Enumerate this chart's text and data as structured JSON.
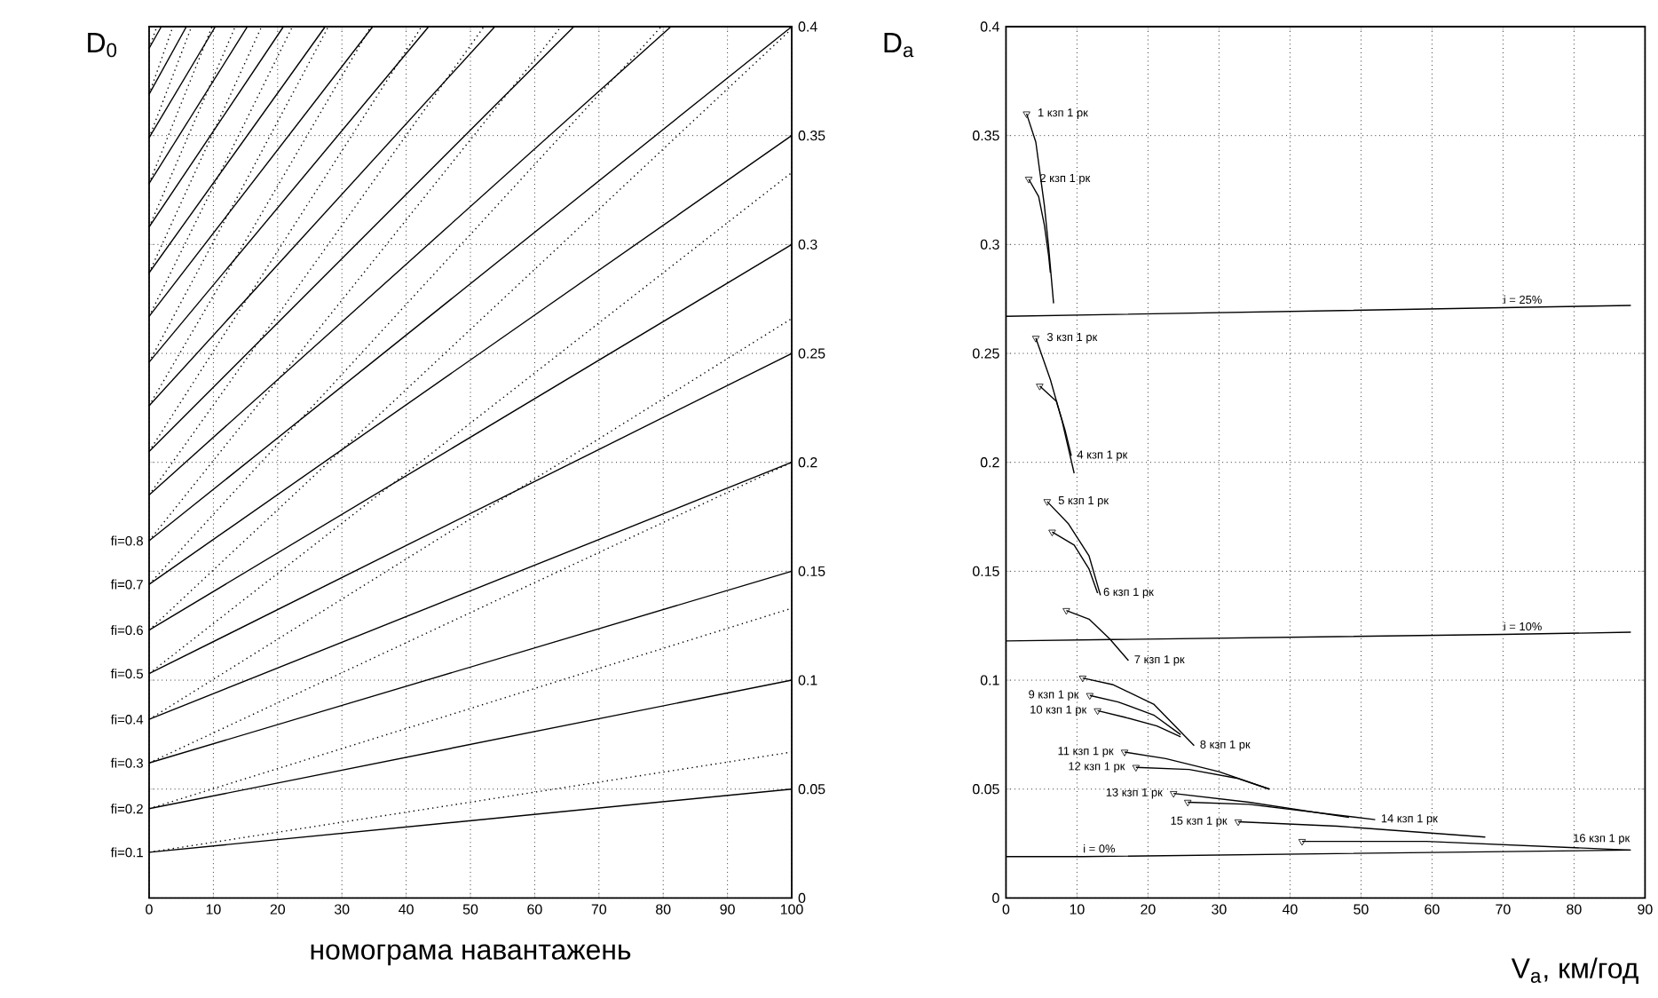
{
  "chart_data": [
    {
      "type": "line",
      "xlabel": "номограма навантажень",
      "ylabel": "D$_{0}$",
      "xlim": [
        0,
        100
      ],
      "xticks": [
        0,
        10,
        20,
        30,
        40,
        50,
        60,
        70,
        80,
        90,
        100
      ],
      "ylim": [
        0,
        0.4
      ],
      "yticks": [
        0,
        0.05,
        0.1,
        0.15,
        0.2,
        0.25,
        0.3,
        0.35,
        0.4
      ],
      "grid": true,
      "series": [
        {
          "name": "fi=0.1",
          "color": "#000000",
          "line_style": "solid",
          "x": [
            0,
            100
          ],
          "values": [
            0.021,
            0.05
          ]
        },
        {
          "name": "fi=0.2",
          "color": "#000000",
          "line_style": "solid",
          "x": [
            0,
            100
          ],
          "values": [
            0.041,
            0.1
          ]
        },
        {
          "name": "fi=0.3",
          "color": "#000000",
          "line_style": "solid",
          "x": [
            0,
            100
          ],
          "values": [
            0.062,
            0.15
          ]
        },
        {
          "name": "fi=0.4",
          "color": "#000000",
          "line_style": "solid",
          "x": [
            0,
            100
          ],
          "values": [
            0.082,
            0.2
          ]
        },
        {
          "name": "fi=0.5",
          "color": "#000000",
          "line_style": "solid",
          "x": [
            0,
            100
          ],
          "values": [
            0.103,
            0.25
          ]
        },
        {
          "name": "fi=0.6",
          "color": "#000000",
          "line_style": "solid",
          "x": [
            0,
            100
          ],
          "values": [
            0.123,
            0.3
          ]
        },
        {
          "name": "fi=0.7",
          "color": "#000000",
          "line_style": "solid",
          "x": [
            0,
            100
          ],
          "values": [
            0.144,
            0.35
          ]
        },
        {
          "name": "fi=0.8",
          "color": "#000000",
          "line_style": "solid",
          "x": [
            0,
            100
          ],
          "values": [
            0.164,
            0.4
          ]
        },
        {
          "color": "#000000",
          "line_style": "solid",
          "x": [
            0,
            81.2
          ],
          "values": [
            0.185,
            0.4
          ]
        },
        {
          "color": "#000000",
          "line_style": "solid",
          "x": [
            0,
            66.1
          ],
          "values": [
            0.205,
            0.4
          ]
        },
        {
          "color": "#000000",
          "line_style": "solid",
          "x": [
            0,
            53.8
          ],
          "values": [
            0.226,
            0.4
          ]
        },
        {
          "color": "#000000",
          "line_style": "solid",
          "x": [
            0,
            43.5
          ],
          "values": [
            0.246,
            0.4
          ]
        },
        {
          "color": "#000000",
          "line_style": "solid",
          "x": [
            0,
            34.8
          ],
          "values": [
            0.267,
            0.4
          ]
        },
        {
          "color": "#000000",
          "line_style": "solid",
          "x": [
            0,
            27.4
          ],
          "values": [
            0.287,
            0.4
          ]
        },
        {
          "color": "#000000",
          "line_style": "solid",
          "x": [
            0,
            20.9
          ],
          "values": [
            0.308,
            0.4
          ]
        },
        {
          "color": "#000000",
          "line_style": "solid",
          "x": [
            0,
            15.3
          ],
          "values": [
            0.328,
            0.4
          ]
        },
        {
          "color": "#000000",
          "line_style": "solid",
          "x": [
            0,
            10.3
          ],
          "values": [
            0.349,
            0.4
          ]
        },
        {
          "color": "#000000",
          "line_style": "solid",
          "x": [
            0,
            5.8
          ],
          "values": [
            0.369,
            0.4
          ]
        },
        {
          "color": "#000000",
          "line_style": "solid",
          "x": [
            0,
            1.9
          ],
          "values": [
            0.39,
            0.4
          ]
        },
        {
          "color": "#000000",
          "line_style": "dotted",
          "x": [
            0,
            100
          ],
          "values": [
            0.021,
            0.067
          ]
        },
        {
          "color": "#000000",
          "line_style": "dotted",
          "x": [
            0,
            100
          ],
          "values": [
            0.041,
            0.133
          ]
        },
        {
          "color": "#000000",
          "line_style": "dotted",
          "x": [
            0,
            100
          ],
          "values": [
            0.062,
            0.2
          ]
        },
        {
          "color": "#000000",
          "line_style": "dotted",
          "x": [
            0,
            100
          ],
          "values": [
            0.082,
            0.266
          ]
        },
        {
          "color": "#000000",
          "line_style": "dotted",
          "x": [
            0,
            100
          ],
          "values": [
            0.103,
            0.333
          ]
        },
        {
          "color": "#000000",
          "line_style": "dotted",
          "x": [
            0,
            100
          ],
          "values": [
            0.123,
            0.399
          ]
        },
        {
          "color": "#000000",
          "line_style": "dotted",
          "x": [
            0,
            79.7
          ],
          "values": [
            0.144,
            0.4
          ]
        },
        {
          "color": "#000000",
          "line_style": "dotted",
          "x": [
            0,
            64.1
          ],
          "values": [
            0.164,
            0.4
          ]
        },
        {
          "color": "#000000",
          "line_style": "dotted",
          "x": [
            0,
            52.1
          ],
          "values": [
            0.185,
            0.4
          ]
        },
        {
          "color": "#000000",
          "line_style": "dotted",
          "x": [
            0,
            42.4
          ],
          "values": [
            0.205,
            0.4
          ]
        },
        {
          "color": "#000000",
          "line_style": "dotted",
          "x": [
            0,
            34.5
          ],
          "values": [
            0.226,
            0.4
          ]
        },
        {
          "color": "#000000",
          "line_style": "dotted",
          "x": [
            0,
            27.9
          ],
          "values": [
            0.246,
            0.4
          ]
        },
        {
          "color": "#000000",
          "line_style": "dotted",
          "x": [
            0,
            22.3
          ],
          "values": [
            0.267,
            0.4
          ]
        },
        {
          "color": "#000000",
          "line_style": "dotted",
          "x": [
            0,
            17.5
          ],
          "values": [
            0.287,
            0.4
          ]
        },
        {
          "color": "#000000",
          "line_style": "dotted",
          "x": [
            0,
            13.4
          ],
          "values": [
            0.308,
            0.4
          ]
        },
        {
          "color": "#000000",
          "line_style": "dotted",
          "x": [
            0,
            9.8
          ],
          "values": [
            0.328,
            0.4
          ]
        },
        {
          "color": "#000000",
          "line_style": "dotted",
          "x": [
            0,
            6.6
          ],
          "values": [
            0.349,
            0.4
          ]
        },
        {
          "color": "#000000",
          "line_style": "dotted",
          "x": [
            0,
            3.7
          ],
          "values": [
            0.369,
            0.4
          ]
        },
        {
          "color": "#000000",
          "line_style": "dotted",
          "x": [
            0,
            1.2
          ],
          "values": [
            0.39,
            0.4
          ]
        }
      ]
    },
    {
      "type": "line",
      "xlabel": "V$_{a}$, км/год",
      "ylabel": "D$_{a}$",
      "xlim": [
        0,
        90
      ],
      "xticks": [
        0,
        10,
        20,
        30,
        40,
        50,
        60,
        70,
        80,
        90
      ],
      "ylim": [
        0,
        0.4
      ],
      "yticks": [
        0,
        0.05,
        0.1,
        0.15,
        0.2,
        0.25,
        0.3,
        0.35,
        0.4
      ],
      "grid": true,
      "series": [
        {
          "name": "i = 25%",
          "color": "#000000",
          "line_style": "solid",
          "x": [
            0,
            70,
            88
          ],
          "values": [
            0.267,
            0.271,
            0.272
          ]
        },
        {
          "name": "i = 10%",
          "color": "#000000",
          "line_style": "solid",
          "x": [
            0,
            70,
            88
          ],
          "values": [
            0.118,
            0.121,
            0.122
          ]
        },
        {
          "name": "i = 0%",
          "color": "#000000",
          "line_style": "solid",
          "x": [
            0,
            10.8,
            88
          ],
          "values": [
            0.019,
            0.019,
            0.022
          ]
        },
        {
          "name": "1 кзп 1 рк",
          "color": "#000000",
          "line_style": "solid",
          "x": [
            2.9,
            4.2,
            5.4,
            6.0,
            6.7
          ],
          "values": [
            0.36,
            0.347,
            0.318,
            0.299,
            0.273
          ]
        },
        {
          "name": "2 кзп 1 рк",
          "color": "#000000",
          "line_style": "solid",
          "x": [
            3.2,
            4.6,
            5.4,
            6.0,
            6.25
          ],
          "values": [
            0.33,
            0.322,
            0.309,
            0.295,
            0.287
          ]
        },
        {
          "name": "3 кзп 1 рк",
          "color": "#000000",
          "line_style": "solid",
          "x": [
            4.2,
            6.25,
            7.9,
            9.6
          ],
          "values": [
            0.257,
            0.238,
            0.219,
            0.195
          ]
        },
        {
          "name": "4 кзп 1 рк",
          "color": "#000000",
          "line_style": "solid",
          "x": [
            4.75,
            7.1,
            8.3,
            9.2
          ],
          "values": [
            0.235,
            0.228,
            0.215,
            0.203
          ]
        },
        {
          "name": "5 кзп 1 рк",
          "color": "#000000",
          "line_style": "solid",
          "x": [
            5.8,
            8.75,
            11.7,
            13.3
          ],
          "values": [
            0.182,
            0.172,
            0.157,
            0.139
          ]
        },
        {
          "name": "6 кзп 1 рк",
          "color": "#000000",
          "line_style": "solid",
          "x": [
            6.5,
            9.6,
            11.7,
            12.9
          ],
          "values": [
            0.168,
            0.162,
            0.151,
            0.14
          ]
        },
        {
          "name": "7 кзп 1 рк",
          "color": "#000000",
          "line_style": "solid",
          "x": [
            8.5,
            11.7,
            14.6,
            17.25
          ],
          "values": [
            0.132,
            0.128,
            0.119,
            0.109
          ]
        },
        {
          "name": "8 кзп 1 рк",
          "color": "#000000",
          "line_style": "solid",
          "x": [
            10.8,
            15,
            20.8,
            26.5
          ],
          "values": [
            0.101,
            0.098,
            0.089,
            0.07
          ]
        },
        {
          "name": "9 кзп 1 рк",
          "color": "#000000",
          "line_style": "solid",
          "x": [
            11.8,
            15.8,
            20.8,
            24.6
          ],
          "values": [
            0.093,
            0.09,
            0.084,
            0.075
          ]
        },
        {
          "name": "10 кзп 1 рк",
          "color": "#000000",
          "line_style": "solid",
          "x": [
            12.9,
            16.7,
            21.25,
            24.6
          ],
          "values": [
            0.086,
            0.083,
            0.079,
            0.074
          ]
        },
        {
          "name": "11 кзп 1 рк",
          "color": "#000000",
          "line_style": "solid",
          "x": [
            16.7,
            22.5,
            30,
            37.1
          ],
          "values": [
            0.067,
            0.064,
            0.058,
            0.05
          ]
        },
        {
          "name": "12 кзп 1 рк",
          "color": "#000000",
          "line_style": "solid",
          "x": [
            18.3,
            25.8,
            32.5,
            37.1
          ],
          "values": [
            0.06,
            0.059,
            0.055,
            0.05
          ]
        },
        {
          "name": "13 кзп 1 рк",
          "color": "#000000",
          "line_style": "solid",
          "x": [
            23.6,
            34.2,
            48.3
          ],
          "values": [
            0.048,
            0.044,
            0.037
          ]
        },
        {
          "name": "14 кзп 1 рк",
          "color": "#000000",
          "line_style": "solid",
          "x": [
            25.6,
            34.2,
            52
          ],
          "values": [
            0.044,
            0.043,
            0.036
          ]
        },
        {
          "name": "15 кзп 1 рк",
          "color": "#000000",
          "line_style": "solid",
          "x": [
            32.7,
            46.7,
            67.5
          ],
          "values": [
            0.035,
            0.033,
            0.028
          ]
        },
        {
          "name": "16 кзп 1 рк",
          "color": "#000000",
          "line_style": "solid",
          "x": [
            41.7,
            59.2,
            87.9
          ],
          "values": [
            0.026,
            0.026,
            0.022
          ]
        },
        {
          "type": "scatter",
          "color": "#000000",
          "marker": "triangle",
          "x": [
            2.9,
            3.2,
            4.2,
            4.75,
            5.8,
            6.5,
            8.5,
            10.8,
            11.8,
            12.9,
            16.7,
            18.3,
            23.6,
            25.6,
            32.7,
            41.7
          ],
          "values": [
            0.36,
            0.33,
            0.257,
            0.235,
            0.182,
            0.168,
            0.132,
            0.101,
            0.093,
            0.086,
            0.067,
            0.06,
            0.048,
            0.044,
            0.035,
            0.026
          ]
        }
      ]
    }
  ]
}
